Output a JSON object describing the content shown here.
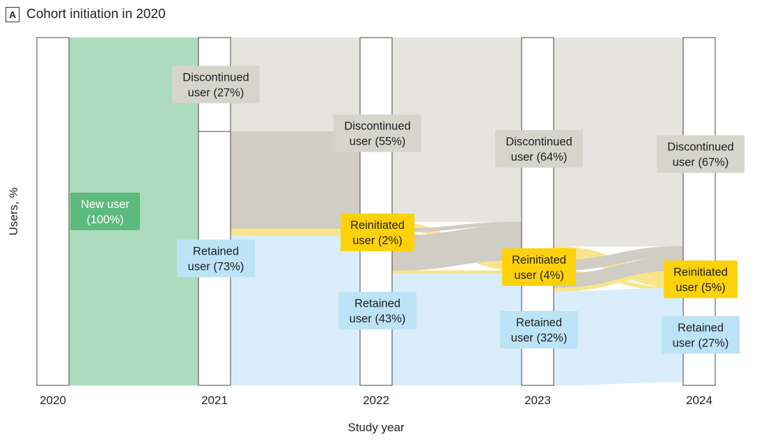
{
  "panel": {
    "letter": "A",
    "title": "Cohort initiation in 2020"
  },
  "colors": {
    "new": "#5cba7d",
    "new_flow": "#acdcbd",
    "retained_box": "#bde3f7",
    "retained_flow": "#d9eefa",
    "discontinued_box": "#d5d5cc",
    "discontinued_flow": "#e5e4de",
    "reinitiated_box": "#fdd20a",
    "reinitiated_flow": "#f8e58c"
  },
  "chart_data": {
    "type": "alluvial",
    "xlabel": "Study year",
    "ylabel": "Users, %",
    "ylim": [
      0,
      100
    ],
    "years": [
      "2020",
      "2021",
      "2022",
      "2023",
      "2024"
    ],
    "nodes": [
      {
        "year": "2020",
        "status": "new",
        "lines": [
          "New user",
          "(100%)"
        ],
        "value": 100
      },
      {
        "year": "2021",
        "status": "discontinued",
        "lines": [
          "Discontinued",
          "user (27%)"
        ],
        "value": 27
      },
      {
        "year": "2021",
        "status": "retained",
        "lines": [
          "Retained",
          "user (73%)"
        ],
        "value": 73
      },
      {
        "year": "2022",
        "status": "discontinued",
        "lines": [
          "Discontinued",
          "user (55%)"
        ],
        "value": 55
      },
      {
        "year": "2022",
        "status": "reinitiated",
        "lines": [
          "Reinitiated",
          "user (2%)"
        ],
        "value": 2
      },
      {
        "year": "2022",
        "status": "retained",
        "lines": [
          "Retained",
          "user (43%)"
        ],
        "value": 43
      },
      {
        "year": "2023",
        "status": "discontinued",
        "lines": [
          "Discontinued",
          "user (64%)"
        ],
        "value": 64
      },
      {
        "year": "2023",
        "status": "reinitiated",
        "lines": [
          "Reinitiated",
          "user (4%)"
        ],
        "value": 4
      },
      {
        "year": "2023",
        "status": "retained",
        "lines": [
          "Retained",
          "user (32%)"
        ],
        "value": 32
      },
      {
        "year": "2024",
        "status": "discontinued",
        "lines": [
          "Discontinued",
          "user (67%)"
        ],
        "value": 67
      },
      {
        "year": "2024",
        "status": "reinitiated",
        "lines": [
          "Reinitiated",
          "user (5%)"
        ],
        "value": 5
      },
      {
        "year": "2024",
        "status": "retained",
        "lines": [
          "Retained",
          "user (27%)"
        ],
        "value": 27
      }
    ],
    "flows": [
      {
        "from_year": "2020",
        "from": "new",
        "to_year": "2021",
        "to": "discontinued",
        "value": 27
      },
      {
        "from_year": "2020",
        "from": "new",
        "to_year": "2021",
        "to": "retained",
        "value": 73
      },
      {
        "from_year": "2021",
        "from": "discontinued",
        "to_year": "2022",
        "to": "discontinued",
        "value": 27
      },
      {
        "from_year": "2021",
        "from": "retained",
        "to_year": "2022",
        "to": "discontinued",
        "value": 28
      },
      {
        "from_year": "2021",
        "from": "retained",
        "to_year": "2022",
        "to": "reinitiated",
        "value": 2
      },
      {
        "from_year": "2021",
        "from": "retained",
        "to_year": "2022",
        "to": "retained",
        "value": 43
      },
      {
        "from_year": "2022",
        "from": "discontinued",
        "to_year": "2023",
        "to": "discontinued",
        "value": 53
      },
      {
        "from_year": "2022",
        "from": "discontinued",
        "to_year": "2023",
        "to": "reinitiated",
        "value": 2
      },
      {
        "from_year": "2022",
        "from": "reinitiated",
        "to_year": "2023",
        "to": "discontinued",
        "value": 1
      },
      {
        "from_year": "2022",
        "from": "reinitiated",
        "to_year": "2023",
        "to": "reinitiated",
        "value": 1
      },
      {
        "from_year": "2022",
        "from": "retained",
        "to_year": "2023",
        "to": "discontinued",
        "value": 10
      },
      {
        "from_year": "2022",
        "from": "retained",
        "to_year": "2023",
        "to": "reinitiated",
        "value": 1
      },
      {
        "from_year": "2022",
        "from": "retained",
        "to_year": "2023",
        "to": "retained",
        "value": 32
      },
      {
        "from_year": "2023",
        "from": "discontinued",
        "to_year": "2024",
        "to": "discontinued",
        "value": 60
      },
      {
        "from_year": "2023",
        "from": "discontinued",
        "to_year": "2024",
        "to": "reinitiated",
        "value": 4
      },
      {
        "from_year": "2023",
        "from": "reinitiated",
        "to_year": "2024",
        "to": "discontinued",
        "value": 3
      },
      {
        "from_year": "2023",
        "from": "reinitiated",
        "to_year": "2024",
        "to": "reinitiated",
        "value": 1
      },
      {
        "from_year": "2023",
        "from": "retained",
        "to_year": "2024",
        "to": "discontinued",
        "value": 4
      },
      {
        "from_year": "2023",
        "from": "retained",
        "to_year": "2024",
        "to": "mixed",
        "value": 1
      },
      {
        "from_year": "2023",
        "from": "retained",
        "to_year": "2024",
        "to": "retained",
        "value": 27
      }
    ]
  }
}
